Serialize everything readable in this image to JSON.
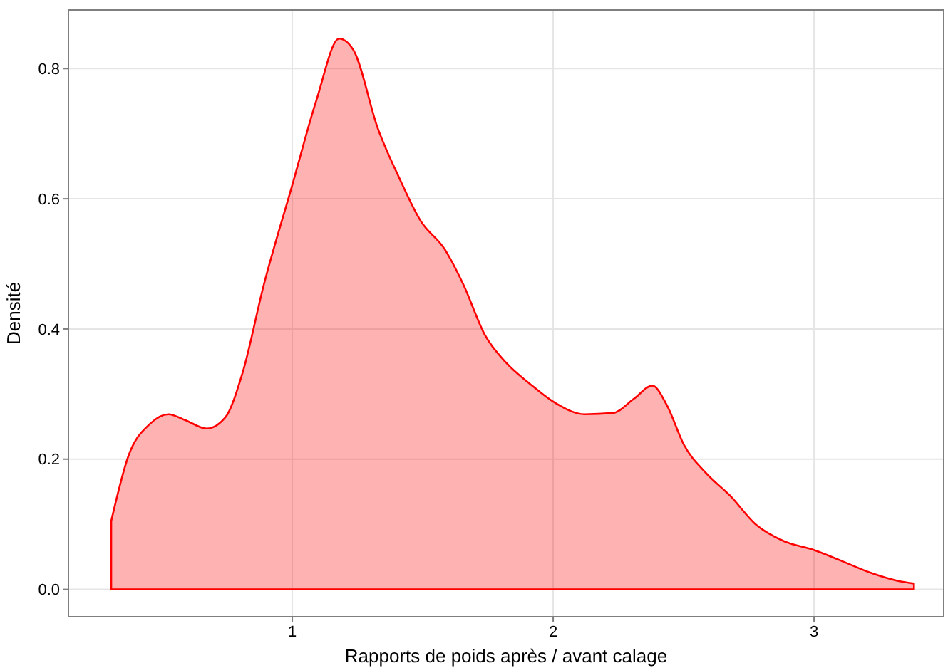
{
  "chart_data": {
    "type": "area",
    "xlabel": "Rapports de poids après / avant calage",
    "ylabel": "Densité",
    "x": [
      0.306,
      0.372,
      0.454,
      0.525,
      0.59,
      0.672,
      0.743,
      0.809,
      0.891,
      1.0,
      1.093,
      1.18,
      1.235,
      1.328,
      1.41,
      1.492,
      1.585,
      1.656,
      1.738,
      1.82,
      1.913,
      2.01,
      2.12,
      2.23,
      2.31,
      2.38,
      2.437,
      2.5,
      2.585,
      2.678,
      2.776,
      2.885,
      2.995,
      3.104,
      3.213,
      3.322,
      3.383
    ],
    "series": [
      {
        "color": "#ff0000",
        "values": [
          0.105,
          0.205,
          0.254,
          0.269,
          0.26,
          0.247,
          0.264,
          0.332,
          0.468,
          0.621,
          0.752,
          0.846,
          0.828,
          0.708,
          0.632,
          0.566,
          0.522,
          0.468,
          0.391,
          0.348,
          0.315,
          0.286,
          0.269,
          0.271,
          0.293,
          0.313,
          0.282,
          0.223,
          0.179,
          0.144,
          0.1,
          0.074,
          0.061,
          0.044,
          0.026,
          0.013,
          0.009
        ]
      }
    ],
    "xlim": [
      0.142,
      3.497
    ],
    "ylim": [
      -0.042,
      0.89
    ],
    "xticks": [
      1,
      2,
      3
    ],
    "yticks": [
      {
        "value": 0,
        "label": "0.0"
      },
      0.2,
      0.4,
      0.6,
      0.8
    ],
    "grid": true
  }
}
